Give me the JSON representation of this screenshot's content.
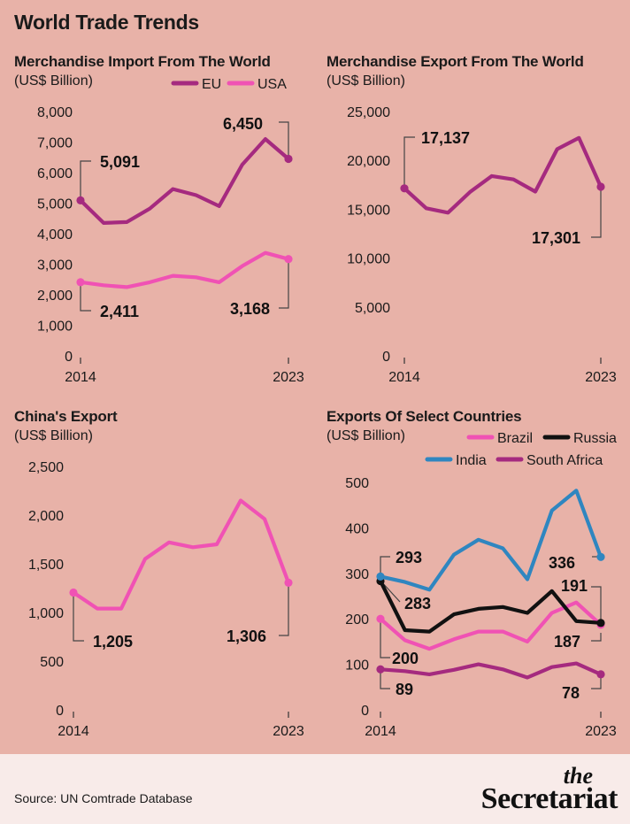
{
  "title": "World Trade Trends",
  "source": "Source: UN Comtrade Database",
  "brand": {
    "small": "the",
    "big": "Secretariat"
  },
  "colors": {
    "background": "#e8b2a8",
    "footer": "#f8ebe9",
    "eu": "#a52a7f",
    "usa": "#f052b4",
    "brazil": "#f052b4",
    "russia": "#111111",
    "india": "#2f86c0",
    "south_africa": "#a52a7f",
    "connector": "#444444"
  },
  "chart_data": [
    {
      "type": "line",
      "title": "Merchandise Import From The World",
      "subtitle": "(US$ Billion)",
      "x": [
        2014,
        2015,
        2016,
        2017,
        2018,
        2019,
        2020,
        2021,
        2022,
        2023
      ],
      "x_tick_labels": [
        "2014",
        "2023"
      ],
      "ylim": [
        0,
        8000
      ],
      "y_ticks": [
        0,
        1000,
        2000,
        3000,
        4000,
        5000,
        6000,
        7000,
        8000
      ],
      "y_tick_labels": [
        "0",
        "1,000",
        "2,000",
        "3,000",
        "4,000",
        "5,000",
        "6,000",
        "7,000",
        "8,000"
      ],
      "legend_position": "top-right",
      "series": [
        {
          "name": "EU",
          "color": "#a52a7f",
          "values": [
            5091,
            4350,
            4380,
            4820,
            5460,
            5260,
            4900,
            6260,
            7100,
            6450
          ]
        },
        {
          "name": "USA",
          "color": "#f052b4",
          "values": [
            2411,
            2310,
            2250,
            2410,
            2620,
            2570,
            2410,
            2940,
            3370,
            3168
          ]
        }
      ],
      "annotations": [
        {
          "series": 0,
          "index": 0,
          "label": "5,091"
        },
        {
          "series": 0,
          "index": 9,
          "label": "6,450"
        },
        {
          "series": 1,
          "index": 0,
          "label": "2,411"
        },
        {
          "series": 1,
          "index": 9,
          "label": "3,168"
        }
      ]
    },
    {
      "type": "line",
      "title": "Merchandise Export From The World",
      "subtitle": "(US$ Billion)",
      "x": [
        2014,
        2015,
        2016,
        2017,
        2018,
        2019,
        2020,
        2021,
        2022,
        2023
      ],
      "x_tick_labels": [
        "2014",
        "2023"
      ],
      "ylim": [
        0,
        25000
      ],
      "y_ticks": [
        0,
        5000,
        10000,
        15000,
        20000,
        25000
      ],
      "y_tick_labels": [
        "0",
        "5,000",
        "10,000",
        "15,000",
        "20,000",
        "25,000"
      ],
      "series": [
        {
          "color": "#a52a7f",
          "values": [
            17137,
            15100,
            14650,
            16750,
            18400,
            18050,
            16800,
            21150,
            22300,
            17301
          ]
        }
      ],
      "annotations": [
        {
          "series": 0,
          "index": 0,
          "label": "17,137"
        },
        {
          "series": 0,
          "index": 9,
          "label": "17,301"
        }
      ]
    },
    {
      "type": "line",
      "title": "China's Export",
      "subtitle": "(US$ Billion)",
      "x": [
        2014,
        2015,
        2016,
        2017,
        2018,
        2019,
        2020,
        2021,
        2022,
        2023
      ],
      "x_tick_labels": [
        "2014",
        "2023"
      ],
      "ylim": [
        0,
        2500
      ],
      "y_ticks": [
        0,
        500,
        1000,
        1500,
        2000,
        2500
      ],
      "y_tick_labels": [
        "0",
        "500",
        "1,000",
        "1,500",
        "2,000",
        "2,500"
      ],
      "series": [
        {
          "color": "#f052b4",
          "values": [
            1205,
            1040,
            1040,
            1550,
            1720,
            1670,
            1700,
            2150,
            1960,
            1306
          ]
        }
      ],
      "annotations": [
        {
          "series": 0,
          "index": 0,
          "label": "1,205"
        },
        {
          "series": 0,
          "index": 9,
          "label": "1,306"
        }
      ]
    },
    {
      "type": "line",
      "title": "Exports Of Select Countries",
      "subtitle": "(US$ Billion)",
      "x": [
        2014,
        2015,
        2016,
        2017,
        2018,
        2019,
        2020,
        2021,
        2022,
        2023
      ],
      "x_tick_labels": [
        "2014",
        "2023"
      ],
      "ylim": [
        0,
        500
      ],
      "y_ticks": [
        0,
        100,
        200,
        300,
        400,
        500
      ],
      "y_tick_labels": [
        "0",
        "100",
        "200",
        "300",
        "400",
        "500"
      ],
      "legend_position": "top-right",
      "series": [
        {
          "name": "Brazil",
          "color": "#f052b4",
          "values": [
            200,
            153,
            134,
            155,
            172,
            172,
            150,
            213,
            236,
            187
          ]
        },
        {
          "name": "Russia",
          "color": "#111111",
          "values": [
            283,
            175,
            172,
            210,
            222,
            226,
            213,
            261,
            195,
            191
          ]
        },
        {
          "name": "India",
          "color": "#2f86c0",
          "values": [
            293,
            281,
            264,
            341,
            374,
            355,
            287,
            438,
            482,
            336
          ]
        },
        {
          "name": "South Africa",
          "color": "#a52a7f",
          "values": [
            89,
            85,
            78,
            88,
            100,
            89,
            71,
            94,
            102,
            78
          ]
        }
      ],
      "annotations": [
        {
          "series": 2,
          "index": 0,
          "label": "293"
        },
        {
          "series": 1,
          "index": 0,
          "label": "283"
        },
        {
          "series": 0,
          "index": 0,
          "label": "200"
        },
        {
          "series": 3,
          "index": 0,
          "label": "89"
        },
        {
          "series": 2,
          "index": 9,
          "label": "336"
        },
        {
          "series": 1,
          "index": 9,
          "label": "191"
        },
        {
          "series": 0,
          "index": 9,
          "label": "187"
        },
        {
          "series": 3,
          "index": 9,
          "label": "78"
        }
      ]
    }
  ]
}
